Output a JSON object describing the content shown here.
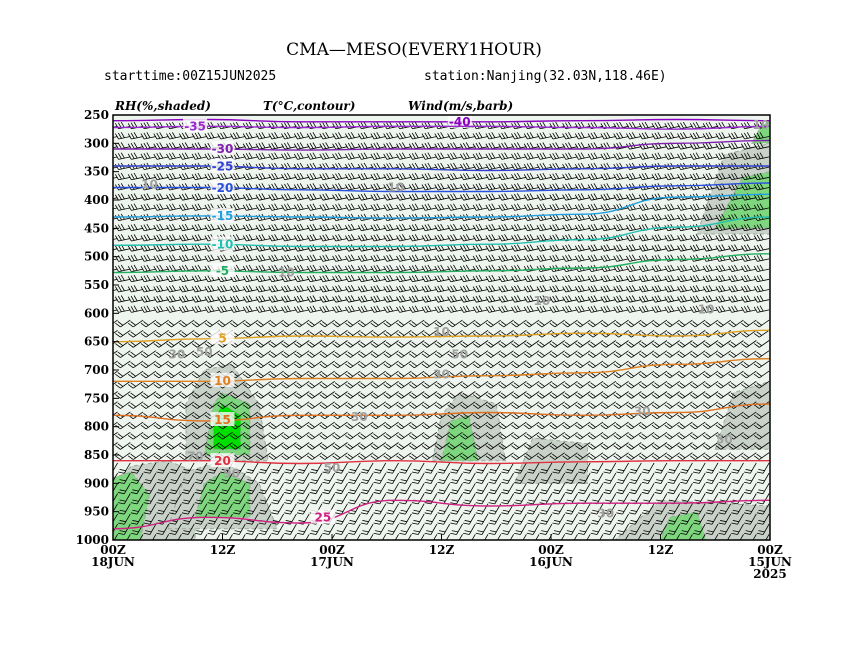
{
  "header": {
    "title": "CMA—MESO(EVERY1HOUR)",
    "starttime": "starttime:00Z15JUN2025",
    "station": "station:Nanjing(32.03N,118.46E)"
  },
  "legend": {
    "rh": "RH(%,shaded)",
    "temp": "T(°C,contour)",
    "wind": "Wind(m/s,barb)"
  },
  "chart_data": {
    "type": "heatmap",
    "y_axis": {
      "label": "",
      "scale": "pressure (hPa), top 250 to bottom 1000",
      "ylim": [
        1000,
        250
      ],
      "ticks": [
        250,
        300,
        350,
        400,
        450,
        500,
        550,
        600,
        650,
        700,
        750,
        800,
        850,
        900,
        950,
        1000
      ]
    },
    "x_axis": {
      "label": "",
      "range_hours": [
        0,
        72
      ],
      "direction": "left is latest (18JUN), right is earliest (15JUN)",
      "ticks": [
        {
          "hour": 0,
          "line1": "00Z",
          "line2": "18JUN",
          "line3": ""
        },
        {
          "hour": 12,
          "line1": "12Z",
          "line2": "",
          "line3": ""
        },
        {
          "hour": 24,
          "line1": "00Z",
          "line2": "17JUN",
          "line3": ""
        },
        {
          "hour": 36,
          "line1": "12Z",
          "line2": "",
          "line3": ""
        },
        {
          "hour": 48,
          "line1": "00Z",
          "line2": "16JUN",
          "line3": ""
        },
        {
          "hour": 60,
          "line1": "12Z",
          "line2": "",
          "line3": ""
        },
        {
          "hour": 72,
          "line1": "00Z",
          "line2": "15JUN",
          "line3": "2025"
        }
      ]
    },
    "rh_shading": {
      "levels": [
        10,
        30,
        50,
        70,
        90
      ],
      "colors": [
        "#ffffff",
        "#e6f0e6",
        "#c8d2c8",
        "#7ed67e",
        "#00e000"
      ],
      "regions": [
        {
          "level": 50,
          "points": [
            [
              0,
              1000
            ],
            [
              9,
              1000
            ],
            [
              9,
              880
            ],
            [
              6,
              860
            ],
            [
              2,
              870
            ],
            [
              0,
              900
            ]
          ]
        },
        {
          "level": 70,
          "points": [
            [
              0,
              1000
            ],
            [
              3,
              1000
            ],
            [
              4,
              920
            ],
            [
              2,
              880
            ],
            [
              0,
              890
            ]
          ]
        },
        {
          "level": 50,
          "points": [
            [
              6,
              980
            ],
            [
              18,
              980
            ],
            [
              16,
              900
            ],
            [
              12,
              860
            ],
            [
              8,
              880
            ]
          ]
        },
        {
          "level": 70,
          "points": [
            [
              9,
              960
            ],
            [
              15,
              960
            ],
            [
              15,
              900
            ],
            [
              12,
              880
            ],
            [
              10,
              900
            ]
          ]
        },
        {
          "level": 50,
          "points": [
            [
              8,
              860
            ],
            [
              17,
              860
            ],
            [
              16,
              760
            ],
            [
              13,
              690
            ],
            [
              10,
              700
            ],
            [
              8,
              760
            ]
          ]
        },
        {
          "level": 70,
          "points": [
            [
              10,
              850
            ],
            [
              15,
              850
            ],
            [
              15,
              760
            ],
            [
              12,
              740
            ],
            [
              11,
              760
            ]
          ]
        },
        {
          "level": 90,
          "points": [
            [
              11,
              840
            ],
            [
              14,
              840
            ],
            [
              14,
              780
            ],
            [
              12,
              760
            ],
            [
              11,
              790
            ]
          ]
        },
        {
          "level": 50,
          "points": [
            [
              35,
              860
            ],
            [
              43,
              860
            ],
            [
              42,
              760
            ],
            [
              38,
              740
            ],
            [
              36,
              780
            ]
          ]
        },
        {
          "level": 70,
          "points": [
            [
              36,
              860
            ],
            [
              40,
              860
            ],
            [
              39,
              780
            ],
            [
              37,
              790
            ]
          ]
        },
        {
          "level": 50,
          "points": [
            [
              44,
              900
            ],
            [
              52,
              900
            ],
            [
              52,
              830
            ],
            [
              46,
              820
            ]
          ]
        },
        {
          "level": 50,
          "points": [
            [
              55,
              1000
            ],
            [
              72,
              1000
            ],
            [
              72,
              940
            ],
            [
              60,
              930
            ]
          ]
        },
        {
          "level": 70,
          "points": [
            [
              60,
              1000
            ],
            [
              65,
              1000
            ],
            [
              64,
              950
            ],
            [
              61,
              960
            ]
          ]
        },
        {
          "level": 50,
          "points": [
            [
              66,
              840
            ],
            [
              72,
              840
            ],
            [
              72,
              720
            ],
            [
              68,
              740
            ]
          ]
        },
        {
          "level": 50,
          "points": [
            [
              64,
              460
            ],
            [
              72,
              460
            ],
            [
              72,
              300
            ],
            [
              67,
              320
            ]
          ]
        },
        {
          "level": 70,
          "points": [
            [
              66,
              450
            ],
            [
              72,
              450
            ],
            [
              72,
              350
            ],
            [
              69,
              360
            ]
          ]
        },
        {
          "level": 70,
          "points": [
            [
              70,
              300
            ],
            [
              72,
              300
            ],
            [
              72,
              260
            ],
            [
              71,
              270
            ]
          ]
        }
      ]
    },
    "temperature_contours": [
      {
        "value": -40,
        "label": "-40",
        "color": "#8a00c0",
        "y": [
          260,
          258,
          262,
          262,
          262,
          260,
          258,
          260
        ],
        "label_hour": 38
      },
      {
        "value": -35,
        "label": "-35",
        "color": "#9a28d0",
        "y": [
          272,
          270,
          272,
          270,
          270,
          272,
          275,
          270
        ],
        "label_hour": 9
      },
      {
        "value": -30,
        "label": "-30",
        "color": "#8020b0",
        "y": [
          310,
          310,
          312,
          310,
          310,
          310,
          300,
          295
        ],
        "label_hour": 12
      },
      {
        "value": -25,
        "label": "-25",
        "color": "#3040d0",
        "y": [
          340,
          340,
          345,
          345,
          348,
          345,
          340,
          340
        ],
        "label_hour": 12
      },
      {
        "value": -20,
        "label": "-20",
        "color": "#2850e0",
        "y": [
          378,
          378,
          382,
          385,
          385,
          382,
          375,
          370
        ],
        "label_hour": 12
      },
      {
        "value": -15,
        "label": "-15",
        "color": "#20a0e0",
        "y": [
          430,
          428,
          430,
          432,
          430,
          425,
          395,
          390
        ],
        "label_hour": 12
      },
      {
        "value": -10,
        "label": "-10",
        "color": "#20c0b0",
        "y": [
          480,
          478,
          482,
          482,
          478,
          470,
          448,
          430
        ],
        "label_hour": 12
      },
      {
        "value": -5,
        "label": "-5",
        "color": "#20b060",
        "y": [
          528,
          525,
          528,
          528,
          525,
          520,
          505,
          495
        ],
        "label_hour": 12
      },
      {
        "value": 5,
        "label": "5",
        "color": "#e0a020",
        "y": [
          650,
          645,
          640,
          642,
          640,
          635,
          640,
          630
        ],
        "label_hour": 12
      },
      {
        "value": 10,
        "label": "10",
        "color": "#e08020",
        "y": [
          720,
          720,
          715,
          715,
          710,
          705,
          690,
          680
        ],
        "label_hour": 12
      },
      {
        "value": 15,
        "label": "15",
        "color": "#e07020",
        "y": [
          780,
          790,
          780,
          780,
          775,
          780,
          775,
          760
        ],
        "label_hour": 12
      },
      {
        "value": 20,
        "label": "20",
        "color": "#e03040",
        "y": [
          860,
          860,
          865,
          860,
          865,
          862,
          860,
          860
        ],
        "label_hour": 12
      },
      {
        "value": 25,
        "label": "25",
        "color": "#d02080",
        "y": [
          980,
          960,
          970,
          930,
          940,
          935,
          935,
          930
        ],
        "label_hour": 23
      }
    ],
    "rh_labels": [
      {
        "text": "10",
        "hour": 4,
        "p": 380
      },
      {
        "text": "10",
        "hour": 31,
        "p": 385
      },
      {
        "text": "10",
        "hour": 19,
        "p": 535
      },
      {
        "text": "10",
        "hour": 47,
        "p": 585
      },
      {
        "text": "10",
        "hour": 36,
        "p": 640
      },
      {
        "text": "10",
        "hour": 65,
        "p": 600
      },
      {
        "text": "30",
        "hour": 7,
        "p": 680
      },
      {
        "text": "50",
        "hour": 10,
        "p": 675
      },
      {
        "text": "30",
        "hour": 36,
        "p": 715
      },
      {
        "text": "50",
        "hour": 38,
        "p": 680
      },
      {
        "text": "30",
        "hour": 27,
        "p": 790
      },
      {
        "text": "30",
        "hour": 58,
        "p": 780
      },
      {
        "text": "50",
        "hour": 24,
        "p": 880
      },
      {
        "text": "50",
        "hour": 67,
        "p": 830
      },
      {
        "text": "70",
        "hour": 9,
        "p": 860
      },
      {
        "text": "90",
        "hour": 13,
        "p": 890
      },
      {
        "text": "30",
        "hour": 54,
        "p": 960
      },
      {
        "text": "10",
        "hour": 71,
        "p": 275
      }
    ],
    "wind": {
      "note": "barbs over the whole domain; direction roughly westerly aloft, variable near the surface"
    }
  }
}
